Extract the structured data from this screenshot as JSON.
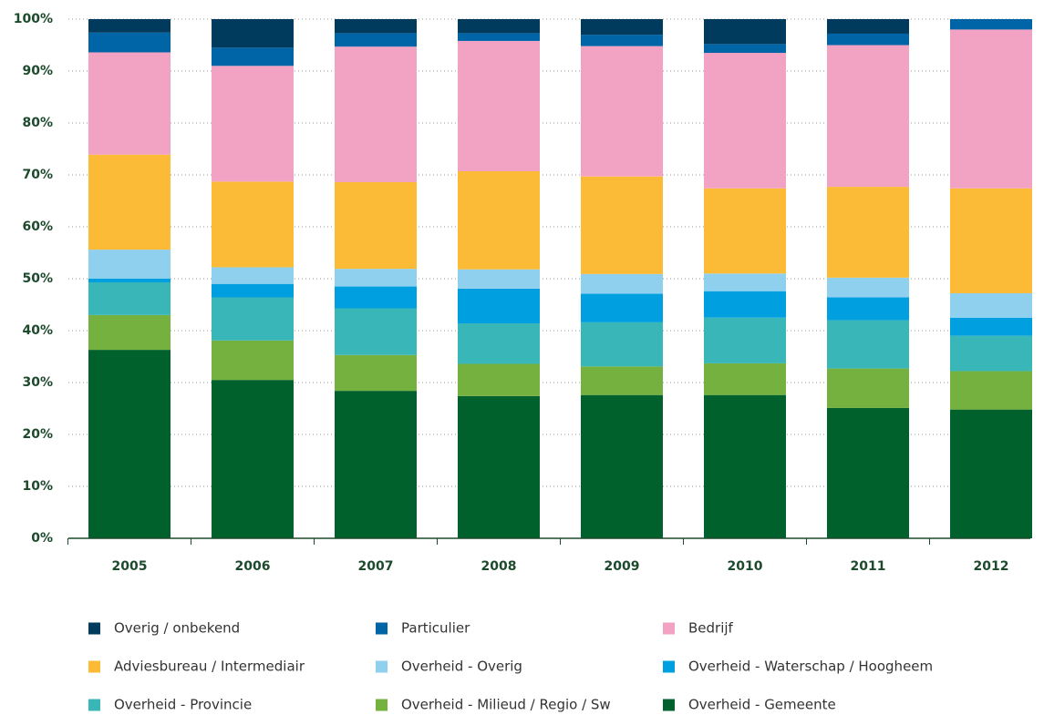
{
  "chart_data": {
    "type": "bar",
    "stacked": true,
    "categories": [
      "2005",
      "2006",
      "2007",
      "2008",
      "2009",
      "2010",
      "2011",
      "2012"
    ],
    "series": [
      {
        "name": "Overig / onbekend",
        "color": "#003a5d",
        "values": [
          2.6,
          5.5,
          2.7,
          2.7,
          3.0,
          4.8,
          2.8,
          0.0
        ]
      },
      {
        "name": "Particulier",
        "color": "#0065a6",
        "values": [
          3.8,
          3.5,
          2.6,
          1.5,
          2.2,
          1.7,
          2.2,
          2.0
        ]
      },
      {
        "name": "Bedrijf",
        "color": "#f2a3c4",
        "values": [
          19.7,
          22.3,
          26.1,
          25.1,
          25.1,
          26.1,
          27.3,
          30.6
        ]
      },
      {
        "name": "Adviesbureau / Intermediair",
        "color": "#fbbb37",
        "values": [
          18.3,
          16.5,
          16.7,
          18.9,
          18.8,
          16.4,
          17.5,
          20.2
        ]
      },
      {
        "name": "Overheid - Overig",
        "color": "#8fd0ef",
        "values": [
          5.6,
          3.2,
          3.4,
          3.7,
          3.8,
          3.4,
          3.8,
          4.7
        ]
      },
      {
        "name": "Overheid - Waterschap / Hoogheem",
        "color": "#00a0e0",
        "values": [
          0.7,
          2.6,
          4.2,
          6.7,
          5.5,
          5.1,
          4.4,
          3.5
        ]
      },
      {
        "name": "Overheid - Provincie",
        "color": "#38b6b8",
        "values": [
          6.3,
          8.3,
          9.0,
          7.8,
          8.5,
          8.8,
          9.3,
          6.8
        ]
      },
      {
        "name": "Overheid - Milieud / Regio / Sw",
        "color": "#74b13e",
        "values": [
          6.7,
          7.6,
          6.9,
          6.2,
          5.5,
          6.1,
          7.6,
          7.4
        ]
      },
      {
        "name": "Overheid - Gemeente",
        "color": "#00612c",
        "values": [
          36.3,
          30.5,
          28.4,
          27.4,
          27.6,
          27.6,
          25.1,
          24.8
        ]
      }
    ],
    "ylim": [
      0,
      100
    ],
    "yticks": [
      {
        "value": 0,
        "label": "0%"
      },
      {
        "value": 10,
        "label": "10%"
      },
      {
        "value": 20,
        "label": "20%"
      },
      {
        "value": 30,
        "label": "30%"
      },
      {
        "value": 40,
        "label": "40%"
      },
      {
        "value": 50,
        "label": "50%"
      },
      {
        "value": 60,
        "label": "60%"
      },
      {
        "value": 70,
        "label": "70%"
      },
      {
        "value": 80,
        "label": "80%"
      },
      {
        "value": 90,
        "label": "90%"
      },
      {
        "value": 100,
        "label": "100%"
      }
    ],
    "grid": true,
    "legend": "bottom"
  }
}
